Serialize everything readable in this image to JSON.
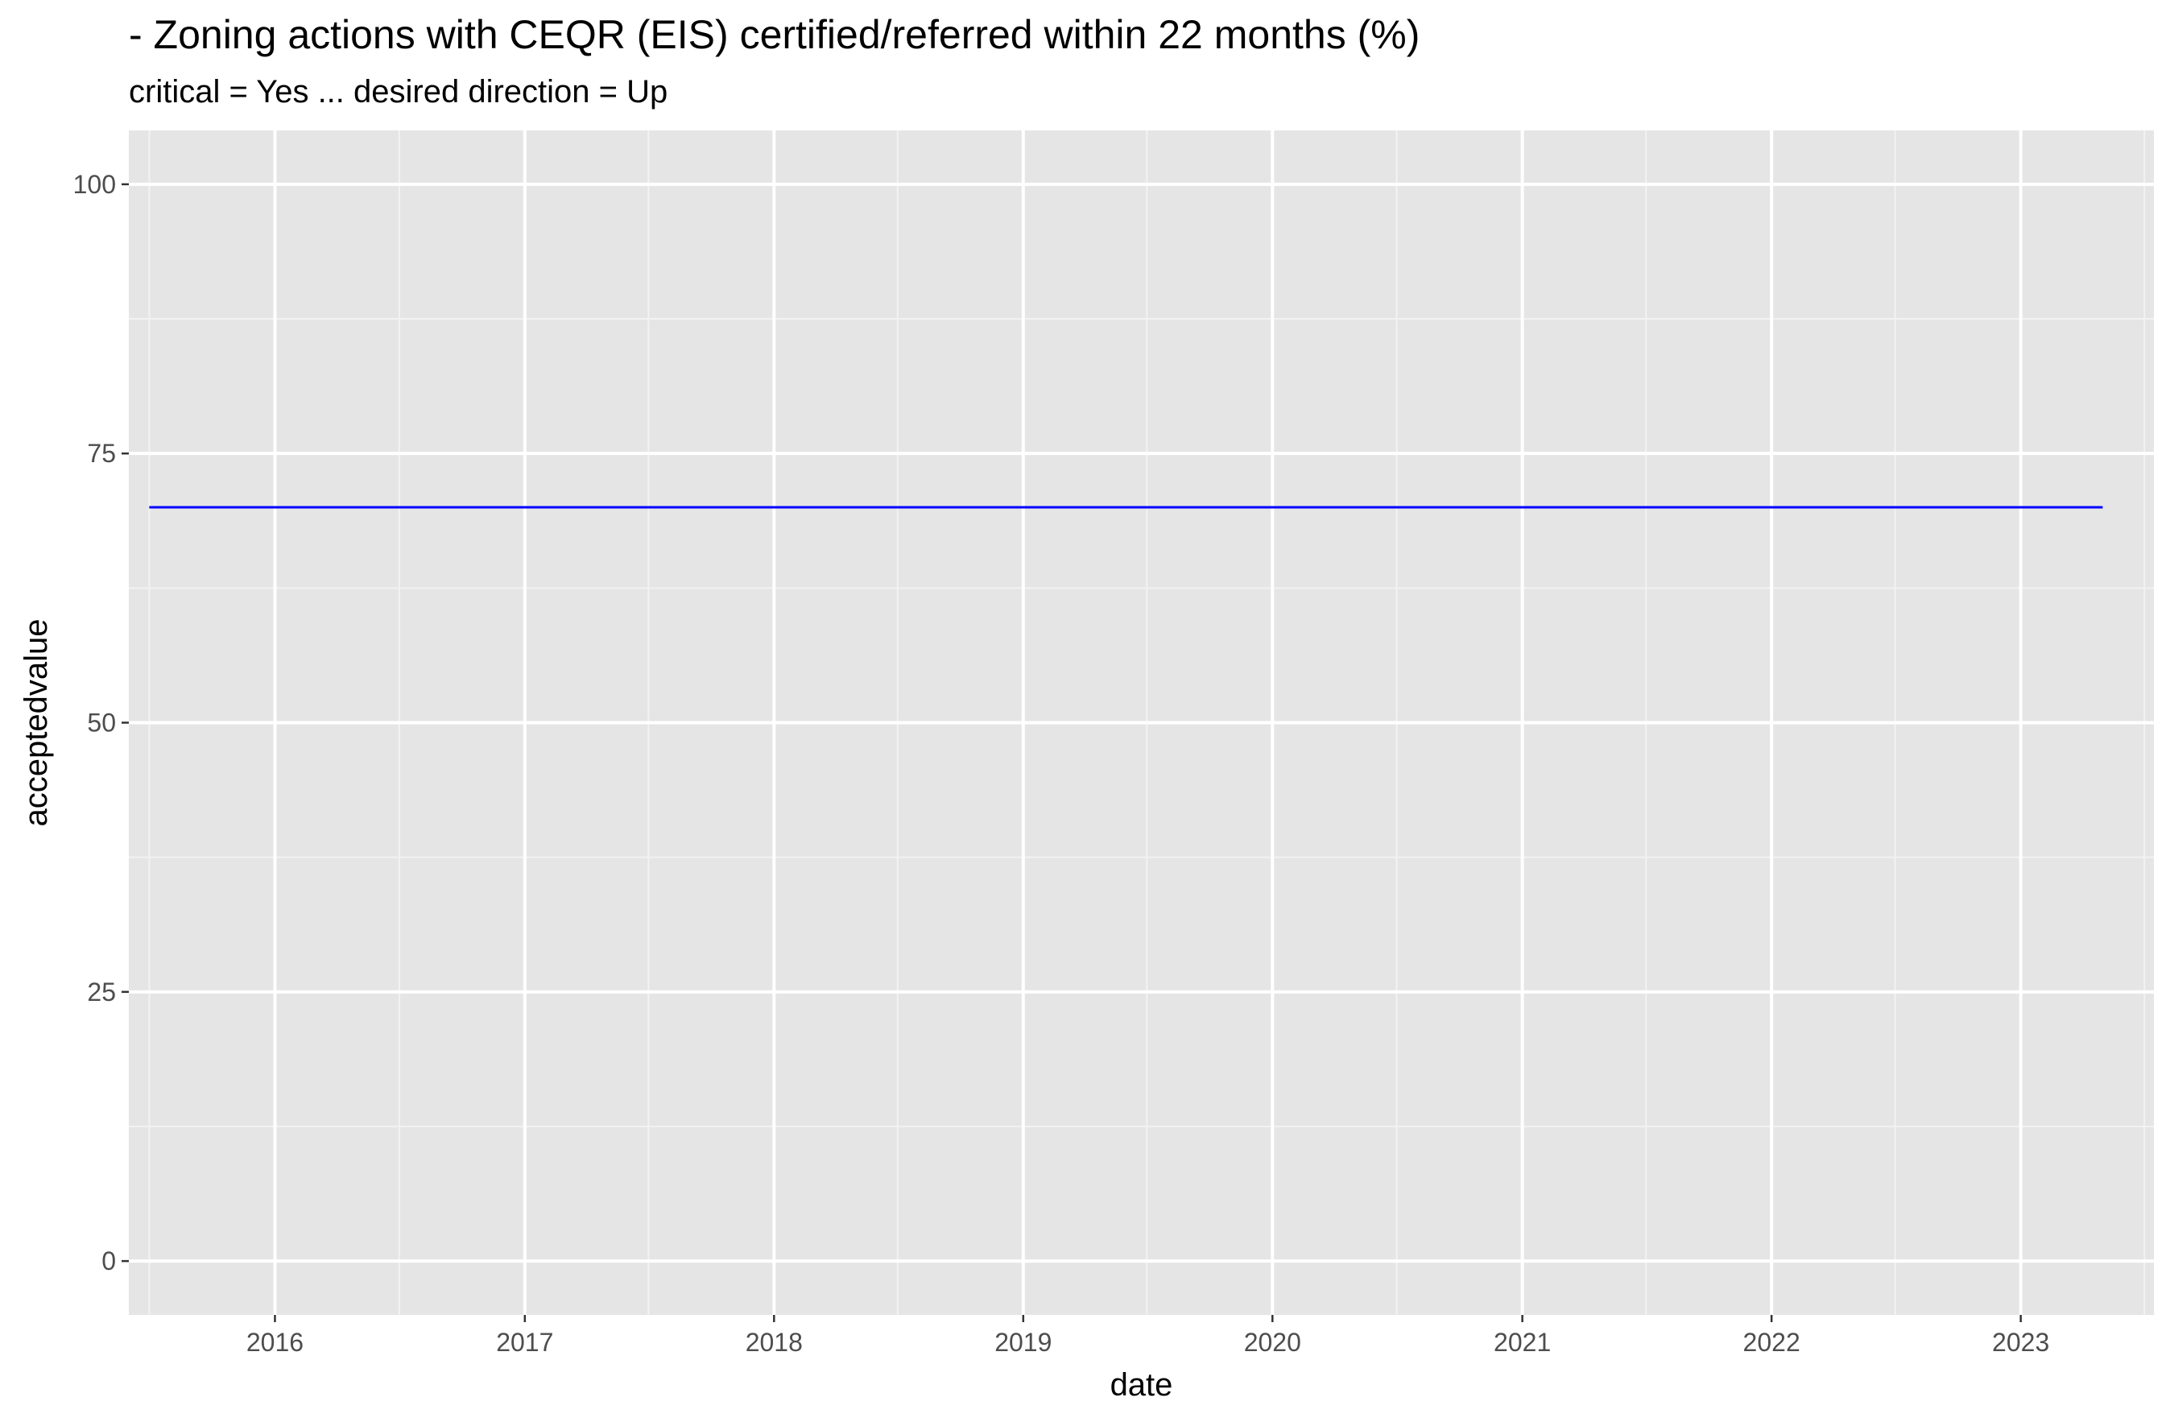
{
  "chart_data": {
    "type": "line",
    "title": "- Zoning actions with CEQR (EIS) certified/referred within 22 months (%)",
    "subtitle": "critical = Yes ... desired direction = Up",
    "xlabel": "date",
    "ylabel": "acceptedvalue",
    "x_ticks": [
      "2016",
      "2017",
      "2018",
      "2019",
      "2020",
      "2021",
      "2022",
      "2023"
    ],
    "y_ticks": [
      "0",
      "25",
      "50",
      "75",
      "100"
    ],
    "xlim": [
      "2015-06-01",
      "2023-07-15"
    ],
    "ylim": [
      -5,
      105
    ],
    "grid": true,
    "legend": "none",
    "series": [
      {
        "color": "#0000ff",
        "x": [
          "2015-07-01",
          "2023-05-01"
        ],
        "y": [
          70,
          70
        ]
      }
    ]
  },
  "colors": {
    "panel_background": "#e5e5e5",
    "grid_major": "#ffffff",
    "grid_minor": "#f2f2f2",
    "tick_text": "#4d4d4d",
    "tick_mark": "#333333",
    "series_line": "#0000ff"
  }
}
